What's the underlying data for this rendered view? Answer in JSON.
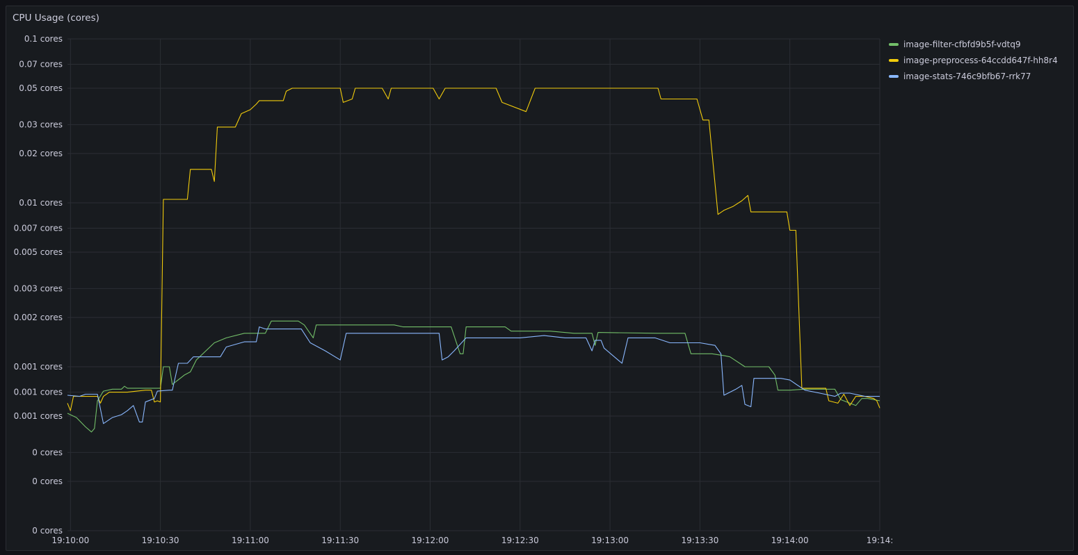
{
  "panel": {
    "title": "CPU Usage (cores)"
  },
  "chart_data": {
    "type": "line",
    "title": "CPU Usage (cores)",
    "ylabel": "",
    "xlabel": "",
    "yscale": "log",
    "unit": "cores",
    "grid": true,
    "legend_position": "right",
    "y_ticks": [
      {
        "value": 0.1,
        "label": "0.1 cores"
      },
      {
        "value": 0.07,
        "label": "0.07 cores"
      },
      {
        "value": 0.05,
        "label": "0.05 cores"
      },
      {
        "value": 0.03,
        "label": "0.03 cores"
      },
      {
        "value": 0.02,
        "label": "0.02 cores"
      },
      {
        "value": 0.01,
        "label": "0.01 cores"
      },
      {
        "value": 0.007,
        "label": "0.007 cores"
      },
      {
        "value": 0.005,
        "label": "0.005 cores"
      },
      {
        "value": 0.003,
        "label": "0.003 cores"
      },
      {
        "value": 0.002,
        "label": "0.002 cores"
      },
      {
        "value": 0.001,
        "label": "0.001 cores"
      },
      {
        "value": 0.0007,
        "label": "0.001 cores"
      },
      {
        "value": 0.0005,
        "label": "0.001 cores"
      },
      {
        "value": 0.0003,
        "label": "0 cores"
      },
      {
        "value": 0.0002,
        "label": "0 cores"
      },
      {
        "value": 0.0001,
        "label": "0 cores"
      }
    ],
    "x_range": [
      "19:09:59",
      "19:14:30"
    ],
    "y_range": [
      0.0001,
      0.1
    ],
    "x_ticks": [
      "19:10:00",
      "19:10:30",
      "19:11:00",
      "19:11:30",
      "19:12:00",
      "19:12:30",
      "19:13:00",
      "19:13:30",
      "19:14:00",
      "19:14:"
    ],
    "series": [
      {
        "name": "image-filter-cfbfd9b5f-vdtq9",
        "color": "#73bf69",
        "points": [
          [
            "19:09:59",
            0.00052
          ],
          [
            "19:10:02",
            0.00049
          ],
          [
            "19:10:05",
            0.00043
          ],
          [
            "19:10:07",
            0.0004
          ],
          [
            "19:10:08",
            0.00042
          ],
          [
            "19:10:09",
            0.00062
          ],
          [
            "19:10:11",
            0.00071
          ],
          [
            "19:10:14",
            0.00073
          ],
          [
            "19:10:17",
            0.00073
          ],
          [
            "19:10:18",
            0.00076
          ],
          [
            "19:10:19",
            0.00074
          ],
          [
            "19:10:23",
            0.00074
          ],
          [
            "19:10:27",
            0.00074
          ],
          [
            "19:10:30",
            0.00074
          ],
          [
            "19:10:31",
            0.001
          ],
          [
            "19:10:33",
            0.001
          ],
          [
            "19:10:34",
            0.00078
          ],
          [
            "19:10:38",
            0.00089
          ],
          [
            "19:10:40",
            0.00093
          ],
          [
            "19:10:42",
            0.0011
          ],
          [
            "19:10:48",
            0.0014
          ],
          [
            "19:10:52",
            0.0015
          ],
          [
            "19:10:58",
            0.0016
          ],
          [
            "19:11:05",
            0.0016
          ],
          [
            "19:11:07",
            0.0019
          ],
          [
            "19:11:16",
            0.0019
          ],
          [
            "19:11:18",
            0.0018
          ],
          [
            "19:11:21",
            0.0015
          ],
          [
            "19:11:22",
            0.0018
          ],
          [
            "19:11:30",
            0.0018
          ],
          [
            "19:11:37",
            0.0018
          ],
          [
            "19:11:40",
            0.0018
          ],
          [
            "19:11:48",
            0.0018
          ],
          [
            "19:11:51",
            0.00175
          ],
          [
            "19:12:00",
            0.00175
          ],
          [
            "19:12:07",
            0.00175
          ],
          [
            "19:12:10",
            0.0012
          ],
          [
            "19:12:11",
            0.0012
          ],
          [
            "19:12:12",
            0.00175
          ],
          [
            "19:12:20",
            0.00175
          ],
          [
            "19:12:25",
            0.00175
          ],
          [
            "19:12:27",
            0.00165
          ],
          [
            "19:12:40",
            0.00165
          ],
          [
            "19:12:48",
            0.0016
          ],
          [
            "19:12:54",
            0.0016
          ],
          [
            "19:12:55",
            0.00135
          ],
          [
            "19:12:56",
            0.00162
          ],
          [
            "19:13:16",
            0.0016
          ],
          [
            "19:13:25",
            0.0016
          ],
          [
            "19:13:27",
            0.0012
          ],
          [
            "19:13:30",
            0.0012
          ],
          [
            "19:13:34",
            0.0012
          ],
          [
            "19:13:38",
            0.00117
          ],
          [
            "19:13:40",
            0.00115
          ],
          [
            "19:13:45",
            0.001
          ],
          [
            "19:13:53",
            0.001
          ],
          [
            "19:13:55",
            0.00089
          ],
          [
            "19:13:56",
            0.00072
          ],
          [
            "19:14:00",
            0.00072
          ],
          [
            "19:14:05",
            0.00073
          ],
          [
            "19:14:10",
            0.00073
          ],
          [
            "19:14:15",
            0.00073
          ],
          [
            "19:14:17",
            0.00063
          ],
          [
            "19:14:22",
            0.00058
          ],
          [
            "19:14:24",
            0.00064
          ],
          [
            "19:14:26",
            0.00064
          ],
          [
            "19:14:30",
            0.00062
          ]
        ]
      },
      {
        "name": "image-preprocess-64ccdd647f-hh8r4",
        "color": "#f2cc0c",
        "points": [
          [
            "19:09:59",
            0.0006
          ],
          [
            "19:10:00",
            0.00054
          ],
          [
            "19:10:01",
            0.00066
          ],
          [
            "19:10:05",
            0.00066
          ],
          [
            "19:10:09",
            0.00066
          ],
          [
            "19:10:10",
            0.0006
          ],
          [
            "19:10:11",
            0.00066
          ],
          [
            "19:10:13",
            0.0007
          ],
          [
            "19:10:19",
            0.0007
          ],
          [
            "19:10:25",
            0.00072
          ],
          [
            "19:10:27",
            0.00072
          ],
          [
            "19:10:28",
            0.00061
          ],
          [
            "19:10:29",
            0.00062
          ],
          [
            "19:10:30",
            0.00061
          ],
          [
            "19:10:31",
            0.0105
          ],
          [
            "19:10:34",
            0.0105
          ],
          [
            "19:10:39",
            0.0105
          ],
          [
            "19:10:40",
            0.016
          ],
          [
            "19:10:47",
            0.016
          ],
          [
            "19:10:48",
            0.0135
          ],
          [
            "19:10:49",
            0.029
          ],
          [
            "19:10:55",
            0.029
          ],
          [
            "19:10:57",
            0.035
          ],
          [
            "19:11:00",
            0.037
          ],
          [
            "19:11:02",
            0.04
          ],
          [
            "19:11:03",
            0.042
          ],
          [
            "19:11:08",
            0.042
          ],
          [
            "19:11:11",
            0.042
          ],
          [
            "19:11:12",
            0.048
          ],
          [
            "19:11:14",
            0.05
          ],
          [
            "19:11:20",
            0.05
          ],
          [
            "19:11:30",
            0.05
          ],
          [
            "19:11:31",
            0.041
          ],
          [
            "19:11:34",
            0.043
          ],
          [
            "19:11:35",
            0.05
          ],
          [
            "19:11:44",
            0.05
          ],
          [
            "19:11:46",
            0.043
          ],
          [
            "19:11:47",
            0.05
          ],
          [
            "19:11:57",
            0.05
          ],
          [
            "19:12:01",
            0.05
          ],
          [
            "19:12:03",
            0.043
          ],
          [
            "19:12:05",
            0.05
          ],
          [
            "19:12:12",
            0.05
          ],
          [
            "19:12:22",
            0.05
          ],
          [
            "19:12:24",
            0.041
          ],
          [
            "19:12:32",
            0.036
          ],
          [
            "19:12:35",
            0.05
          ],
          [
            "19:12:50",
            0.05
          ],
          [
            "19:13:05",
            0.05
          ],
          [
            "19:13:16",
            0.05
          ],
          [
            "19:13:17",
            0.043
          ],
          [
            "19:13:25",
            0.043
          ],
          [
            "19:13:29",
            0.043
          ],
          [
            "19:13:31",
            0.032
          ],
          [
            "19:13:33",
            0.032
          ],
          [
            "19:13:36",
            0.0085
          ],
          [
            "19:13:38",
            0.009
          ],
          [
            "19:13:41",
            0.0095
          ],
          [
            "19:13:44",
            0.0103
          ],
          [
            "19:13:46",
            0.0111
          ],
          [
            "19:13:47",
            0.0088
          ],
          [
            "19:13:53",
            0.0088
          ],
          [
            "19:13:59",
            0.0088
          ],
          [
            "19:14:00",
            0.0068
          ],
          [
            "19:14:02",
            0.0068
          ],
          [
            "19:14:04",
            0.00074
          ],
          [
            "19:14:08",
            0.00074
          ],
          [
            "19:14:12",
            0.00074
          ],
          [
            "19:14:13",
            0.00062
          ],
          [
            "19:14:16",
            0.0006
          ],
          [
            "19:14:18",
            0.00068
          ],
          [
            "19:14:20",
            0.00058
          ],
          [
            "19:14:22",
            0.00066
          ],
          [
            "19:14:25",
            0.00066
          ],
          [
            "19:14:28",
            0.00064
          ],
          [
            "19:14:29",
            0.00062
          ],
          [
            "19:14:30",
            0.00056
          ]
        ]
      },
      {
        "name": "image-stats-746c9bfb67-rrk77",
        "color": "#8ab8ff",
        "points": [
          [
            "19:09:59",
            0.00067
          ],
          [
            "19:10:03",
            0.00066
          ],
          [
            "19:10:05",
            0.00068
          ],
          [
            "19:10:09",
            0.00068
          ],
          [
            "19:10:11",
            0.00045
          ],
          [
            "19:10:14",
            0.00049
          ],
          [
            "19:10:17",
            0.00051
          ],
          [
            "19:10:19",
            0.00054
          ],
          [
            "19:10:21",
            0.00058
          ],
          [
            "19:10:23",
            0.00046
          ],
          [
            "19:10:24",
            0.00046
          ],
          [
            "19:10:25",
            0.00061
          ],
          [
            "19:10:28",
            0.00064
          ],
          [
            "19:10:29",
            0.00071
          ],
          [
            "19:10:33",
            0.00072
          ],
          [
            "19:10:34",
            0.00072
          ],
          [
            "19:10:36",
            0.00105
          ],
          [
            "19:10:39",
            0.00105
          ],
          [
            "19:10:41",
            0.00115
          ],
          [
            "19:10:50",
            0.00115
          ],
          [
            "19:10:52",
            0.00132
          ],
          [
            "19:10:58",
            0.00142
          ],
          [
            "19:11:02",
            0.00142
          ],
          [
            "19:11:03",
            0.00175
          ],
          [
            "19:11:05",
            0.0017
          ],
          [
            "19:11:10",
            0.0017
          ],
          [
            "19:11:17",
            0.0017
          ],
          [
            "19:11:20",
            0.0014
          ],
          [
            "19:11:25",
            0.00125
          ],
          [
            "19:11:30",
            0.0011
          ],
          [
            "19:11:32",
            0.0016
          ],
          [
            "19:11:40",
            0.0016
          ],
          [
            "19:11:50",
            0.0016
          ],
          [
            "19:12:03",
            0.0016
          ],
          [
            "19:12:04",
            0.0011
          ],
          [
            "19:12:06",
            0.00115
          ],
          [
            "19:12:08",
            0.00125
          ],
          [
            "19:12:12",
            0.0015
          ],
          [
            "19:12:22",
            0.0015
          ],
          [
            "19:12:30",
            0.0015
          ],
          [
            "19:12:38",
            0.00155
          ],
          [
            "19:12:45",
            0.0015
          ],
          [
            "19:12:52",
            0.0015
          ],
          [
            "19:12:54",
            0.00125
          ],
          [
            "19:12:55",
            0.00145
          ],
          [
            "19:12:57",
            0.00145
          ],
          [
            "19:12:58",
            0.0013
          ],
          [
            "19:13:04",
            0.00105
          ],
          [
            "19:13:06",
            0.0015
          ],
          [
            "19:13:15",
            0.0015
          ],
          [
            "19:13:20",
            0.0014
          ],
          [
            "19:13:25",
            0.0014
          ],
          [
            "19:13:30",
            0.0014
          ],
          [
            "19:13:35",
            0.00135
          ],
          [
            "19:13:37",
            0.0012
          ],
          [
            "19:13:38",
            0.00067
          ],
          [
            "19:13:42",
            0.00073
          ],
          [
            "19:13:44",
            0.00077
          ],
          [
            "19:13:45",
            0.00059
          ],
          [
            "19:13:47",
            0.00057
          ],
          [
            "19:13:48",
            0.00085
          ],
          [
            "19:13:57",
            0.00085
          ],
          [
            "19:14:00",
            0.00083
          ],
          [
            "19:14:05",
            0.00072
          ],
          [
            "19:14:10",
            0.00069
          ],
          [
            "19:14:15",
            0.00066
          ],
          [
            "19:14:17",
            0.00069
          ],
          [
            "19:14:20",
            0.00069
          ],
          [
            "19:14:25",
            0.00066
          ],
          [
            "19:14:30",
            0.00066
          ]
        ]
      }
    ]
  }
}
